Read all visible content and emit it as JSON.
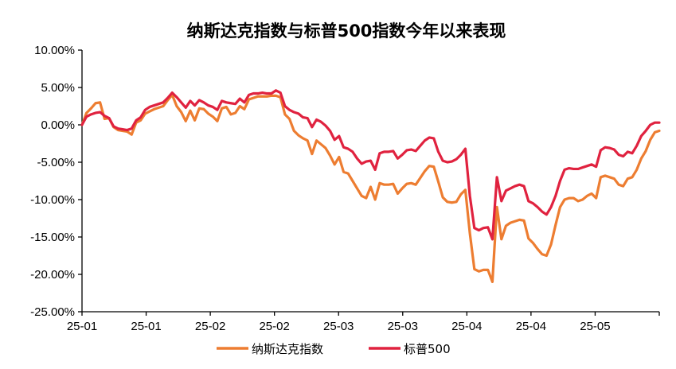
{
  "chart_data": {
    "type": "line",
    "title": "纳斯达克指数与标普500指数今年以来表现",
    "xlabel": "",
    "ylabel": "",
    "x_tick_labels": [
      "25-01",
      "25-01",
      "25-02",
      "25-02",
      "25-03",
      "25-03",
      "25-04",
      "25-04",
      "25-05"
    ],
    "y_tick_labels": [
      "10.00%",
      "5.00%",
      "0.00%",
      "-5.00%",
      "-10.00%",
      "-15.00%",
      "-20.00%",
      "-25.00%"
    ],
    "y_tick_values": [
      10,
      5,
      0,
      -5,
      -10,
      -15,
      -20,
      -25
    ],
    "ylim": [
      -25,
      10
    ],
    "grid": false,
    "legend_position": "bottom",
    "colors": {
      "nasdaq": "#ED7D31",
      "sp500": "#E0223F"
    },
    "series": [
      {
        "name": "纳斯达克指数",
        "color": "#ED7D31",
        "values": [
          0.0,
          1.6,
          2.2,
          2.9,
          3.0,
          0.8,
          0.9,
          -0.3,
          -0.7,
          -0.8,
          -0.9,
          -1.3,
          0.3,
          0.6,
          1.5,
          1.8,
          2.1,
          2.3,
          2.5,
          3.3,
          4.0,
          2.5,
          1.7,
          0.5,
          1.9,
          0.6,
          2.2,
          2.1,
          1.5,
          1.1,
          0.5,
          2.2,
          2.4,
          1.4,
          1.6,
          2.5,
          2.1,
          3.4,
          3.6,
          3.8,
          3.8,
          3.8,
          3.9,
          3.9,
          3.7,
          1.4,
          0.8,
          -0.8,
          -1.4,
          -1.8,
          -2.1,
          -3.9,
          -2.1,
          -2.6,
          -3.1,
          -4.1,
          -5.3,
          -4.3,
          -6.3,
          -6.5,
          -7.5,
          -8.5,
          -9.5,
          -9.8,
          -8.3,
          -10.0,
          -7.8,
          -8.0,
          -8.0,
          -7.9,
          -9.2,
          -8.5,
          -7.9,
          -7.8,
          -8.0,
          -7.1,
          -6.2,
          -5.5,
          -5.6,
          -7.6,
          -9.7,
          -10.3,
          -10.4,
          -10.3,
          -9.3,
          -8.7,
          -14.5,
          -19.3,
          -19.6,
          -19.4,
          -19.4,
          -21.0,
          -11.0,
          -15.3,
          -13.5,
          -13.1,
          -12.9,
          -12.7,
          -12.8,
          -15.2,
          -15.8,
          -16.6,
          -17.3,
          -17.5,
          -16.0,
          -13.4,
          -11.0,
          -10.0,
          -9.8,
          -9.8,
          -10.2,
          -10.0,
          -9.5,
          -9.2,
          -9.8,
          -7.0,
          -6.8,
          -7.0,
          -7.2,
          -8.0,
          -8.2,
          -7.2,
          -7.0,
          -6.0,
          -4.5,
          -3.5,
          -2.0,
          -1.0,
          -0.8
        ]
      },
      {
        "name": "标普500",
        "color": "#E0223F",
        "values": [
          0.0,
          1.1,
          1.4,
          1.6,
          1.7,
          1.2,
          0.9,
          -0.2,
          -0.5,
          -0.6,
          -0.7,
          -0.5,
          0.6,
          1.0,
          2.0,
          2.4,
          2.6,
          2.8,
          3.0,
          3.6,
          4.3,
          3.7,
          3.0,
          2.3,
          3.2,
          2.6,
          3.3,
          3.0,
          2.6,
          2.4,
          2.0,
          3.2,
          3.0,
          2.9,
          2.8,
          3.5,
          3.0,
          4.0,
          4.2,
          4.2,
          4.3,
          4.2,
          4.2,
          4.6,
          4.3,
          2.5,
          2.0,
          1.7,
          1.5,
          1.0,
          0.9,
          -0.3,
          0.7,
          0.4,
          -0.1,
          -0.8,
          -2.0,
          -1.5,
          -3.0,
          -3.2,
          -3.6,
          -4.5,
          -5.2,
          -4.9,
          -4.8,
          -6.0,
          -3.8,
          -3.6,
          -3.6,
          -3.5,
          -4.5,
          -4.0,
          -3.4,
          -3.3,
          -3.5,
          -2.8,
          -2.1,
          -1.7,
          -1.8,
          -3.6,
          -4.8,
          -5.0,
          -4.9,
          -4.6,
          -4.0,
          -3.2,
          -9.5,
          -13.8,
          -14.1,
          -13.8,
          -13.7,
          -15.3,
          -7.0,
          -10.2,
          -8.8,
          -8.5,
          -8.2,
          -8.0,
          -8.2,
          -10.2,
          -10.5,
          -11.0,
          -11.6,
          -12.0,
          -11.0,
          -9.5,
          -7.5,
          -6.0,
          -5.8,
          -5.9,
          -5.9,
          -5.7,
          -5.5,
          -5.3,
          -5.6,
          -3.4,
          -3.0,
          -3.1,
          -3.3,
          -4.0,
          -4.2,
          -3.6,
          -3.8,
          -2.8,
          -1.5,
          -0.8,
          0.0,
          0.3,
          0.3
        ]
      }
    ]
  }
}
